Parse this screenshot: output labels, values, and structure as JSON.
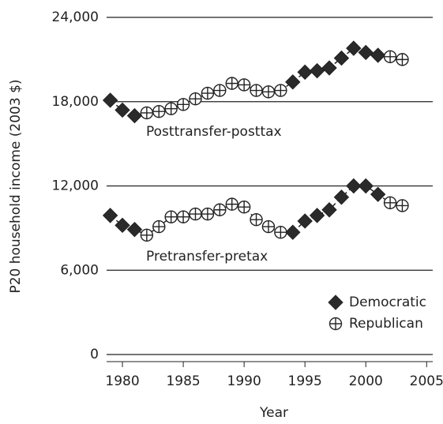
{
  "chart_data": {
    "type": "line",
    "xlabel": "Year",
    "ylabel": "P20 household income (2003 $)",
    "x": [
      1979,
      1980,
      1981,
      1982,
      1983,
      1984,
      1985,
      1986,
      1987,
      1988,
      1989,
      1990,
      1991,
      1992,
      1993,
      1994,
      1995,
      1996,
      1997,
      1998,
      1999,
      2000,
      2001,
      2002,
      2003
    ],
    "series": [
      {
        "name": "Posttransfer-posttax",
        "color": "#222222",
        "values": [
          18100,
          17400,
          17000,
          17200,
          17300,
          17500,
          17800,
          18200,
          18600,
          18800,
          19300,
          19200,
          18800,
          18700,
          18800,
          19400,
          20100,
          20200,
          20400,
          21100,
          21800,
          21500,
          21300,
          21200,
          21000
        ]
      },
      {
        "name": "Pretransfer-pretax",
        "color": "#222222",
        "values": [
          9900,
          9200,
          8900,
          8500,
          9100,
          9800,
          9800,
          10000,
          10000,
          10300,
          10700,
          10500,
          9600,
          9100,
          8700,
          8700,
          9500,
          9900,
          10300,
          11200,
          12000,
          12000,
          11400,
          10800,
          10600
        ]
      }
    ],
    "legend": [
      {
        "name": "Democratic",
        "marker": "diamond"
      },
      {
        "name": "Republican",
        "marker": "circle"
      }
    ],
    "party": [
      0,
      0,
      0,
      1,
      1,
      1,
      1,
      1,
      1,
      1,
      1,
      1,
      1,
      1,
      1,
      0,
      0,
      0,
      0,
      0,
      0,
      0,
      0,
      1,
      1
    ],
    "xlim": [
      1978.7,
      2005.5
    ],
    "xticks": [
      1980,
      1985,
      1990,
      1995,
      2000,
      2005
    ],
    "ylim": [
      0,
      24000
    ],
    "yticks": [
      0,
      {
        "value": 6000,
        "label": "6,000"
      },
      {
        "value": 12000,
        "label": "12,000"
      },
      {
        "value": 18000,
        "label": "18,000"
      },
      {
        "value": 24000,
        "label": "24,000"
      }
    ],
    "grid": true,
    "legend_position": "lower right"
  }
}
